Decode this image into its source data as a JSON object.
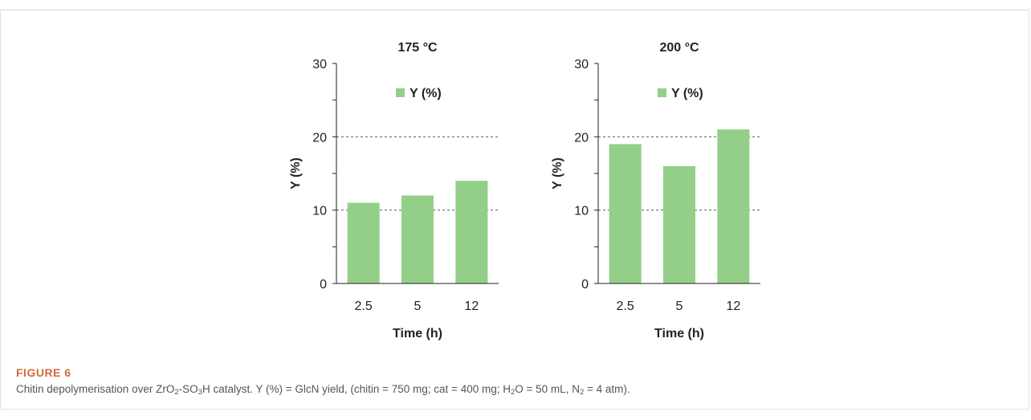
{
  "chart_data": [
    {
      "type": "bar",
      "title": "175 °C",
      "xlabel": "Time (h)",
      "ylabel": "Y (%)",
      "categories": [
        "2.5",
        "5",
        "12"
      ],
      "series": [
        {
          "name": "Y (%)",
          "values": [
            11,
            12,
            14
          ]
        }
      ],
      "ylim": [
        0,
        30
      ],
      "yticks": [
        "0",
        "10",
        "20",
        "30"
      ],
      "grid": "dashed at 10 and 20",
      "legend": "top",
      "bar_color": "#93cf88"
    },
    {
      "type": "bar",
      "title": "200 °C",
      "xlabel": "Time (h)",
      "ylabel": "Y (%)",
      "categories": [
        "2.5",
        "5",
        "12"
      ],
      "series": [
        {
          "name": "Y (%)",
          "values": [
            19,
            16,
            21
          ]
        }
      ],
      "ylim": [
        0,
        30
      ],
      "yticks": [
        "0",
        "10",
        "20",
        "30"
      ],
      "grid": "dashed at 10 and 20",
      "legend": "top",
      "bar_color": "#93cf88"
    }
  ],
  "caption": {
    "label": "FIGURE 6",
    "text_parts": [
      "Chitin depolymerisation over ZrO",
      "2",
      "-SO",
      "3",
      "H catalyst. Y (%) = GlcN yield, (chitin = 750 mg; cat = 400 mg; H",
      "2",
      "O = 50 mL, N",
      "2",
      " = 4 atm)."
    ]
  }
}
